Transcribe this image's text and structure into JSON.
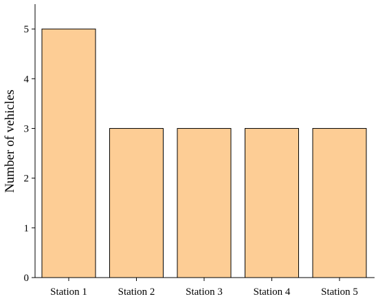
{
  "chart_data": {
    "type": "bar",
    "categories": [
      "Station 1",
      "Station 2",
      "Station 3",
      "Station 4",
      "Station 5"
    ],
    "values": [
      5,
      3,
      3,
      3,
      3
    ],
    "title": "",
    "xlabel": "",
    "ylabel": "Number of vehicles",
    "ylim": [
      0,
      5.5
    ],
    "yticks": [
      0,
      1,
      2,
      3,
      4,
      5
    ],
    "grid": false,
    "bar_color": "#FDCD95",
    "bar_edge_color": "#000000"
  }
}
